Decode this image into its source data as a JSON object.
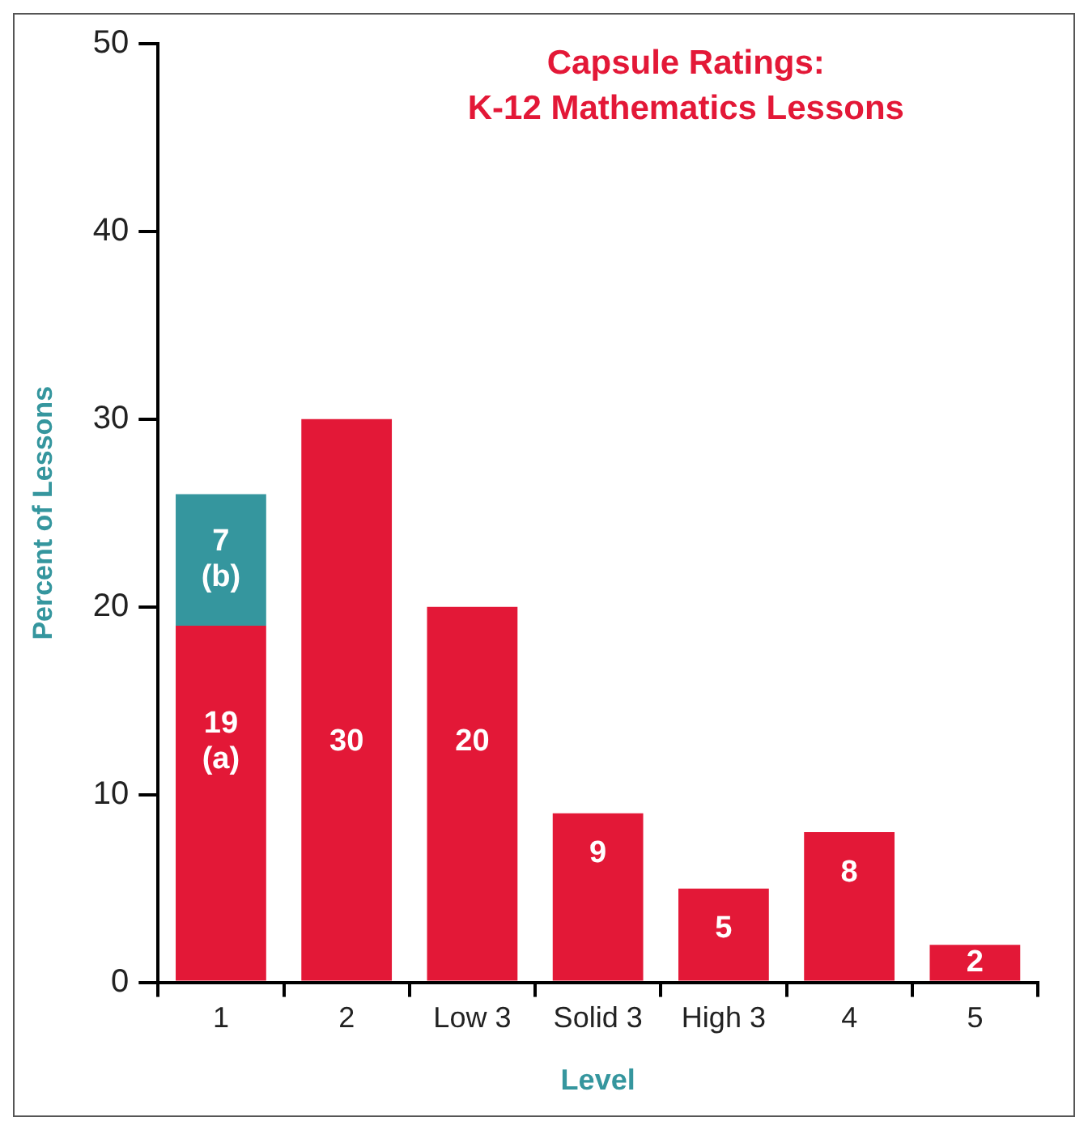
{
  "chart_data": {
    "type": "bar",
    "stacked": true,
    "title": "Capsule Ratings:\nK-12 Mathematics Lessons",
    "xlabel": "Level",
    "ylabel": "Percent of Lessons",
    "categories": [
      "1",
      "2",
      "Low 3",
      "Solid 3",
      "High 3",
      "4",
      "5"
    ],
    "series": [
      {
        "color": "#e31837",
        "values": [
          19,
          30,
          20,
          9,
          5,
          8,
          2
        ],
        "value_labels": [
          "19\n(a)",
          "30",
          "20",
          "9",
          "5",
          "8",
          "2"
        ]
      },
      {
        "color": "#35969e",
        "values": [
          7,
          null,
          null,
          null,
          null,
          null,
          null
        ],
        "value_labels": [
          "7\n(b)",
          null,
          null,
          null,
          null,
          null,
          null
        ]
      }
    ],
    "ylim": [
      0,
      50
    ],
    "yticks": [
      0,
      10,
      20,
      30,
      40,
      50
    ],
    "legend": false
  }
}
